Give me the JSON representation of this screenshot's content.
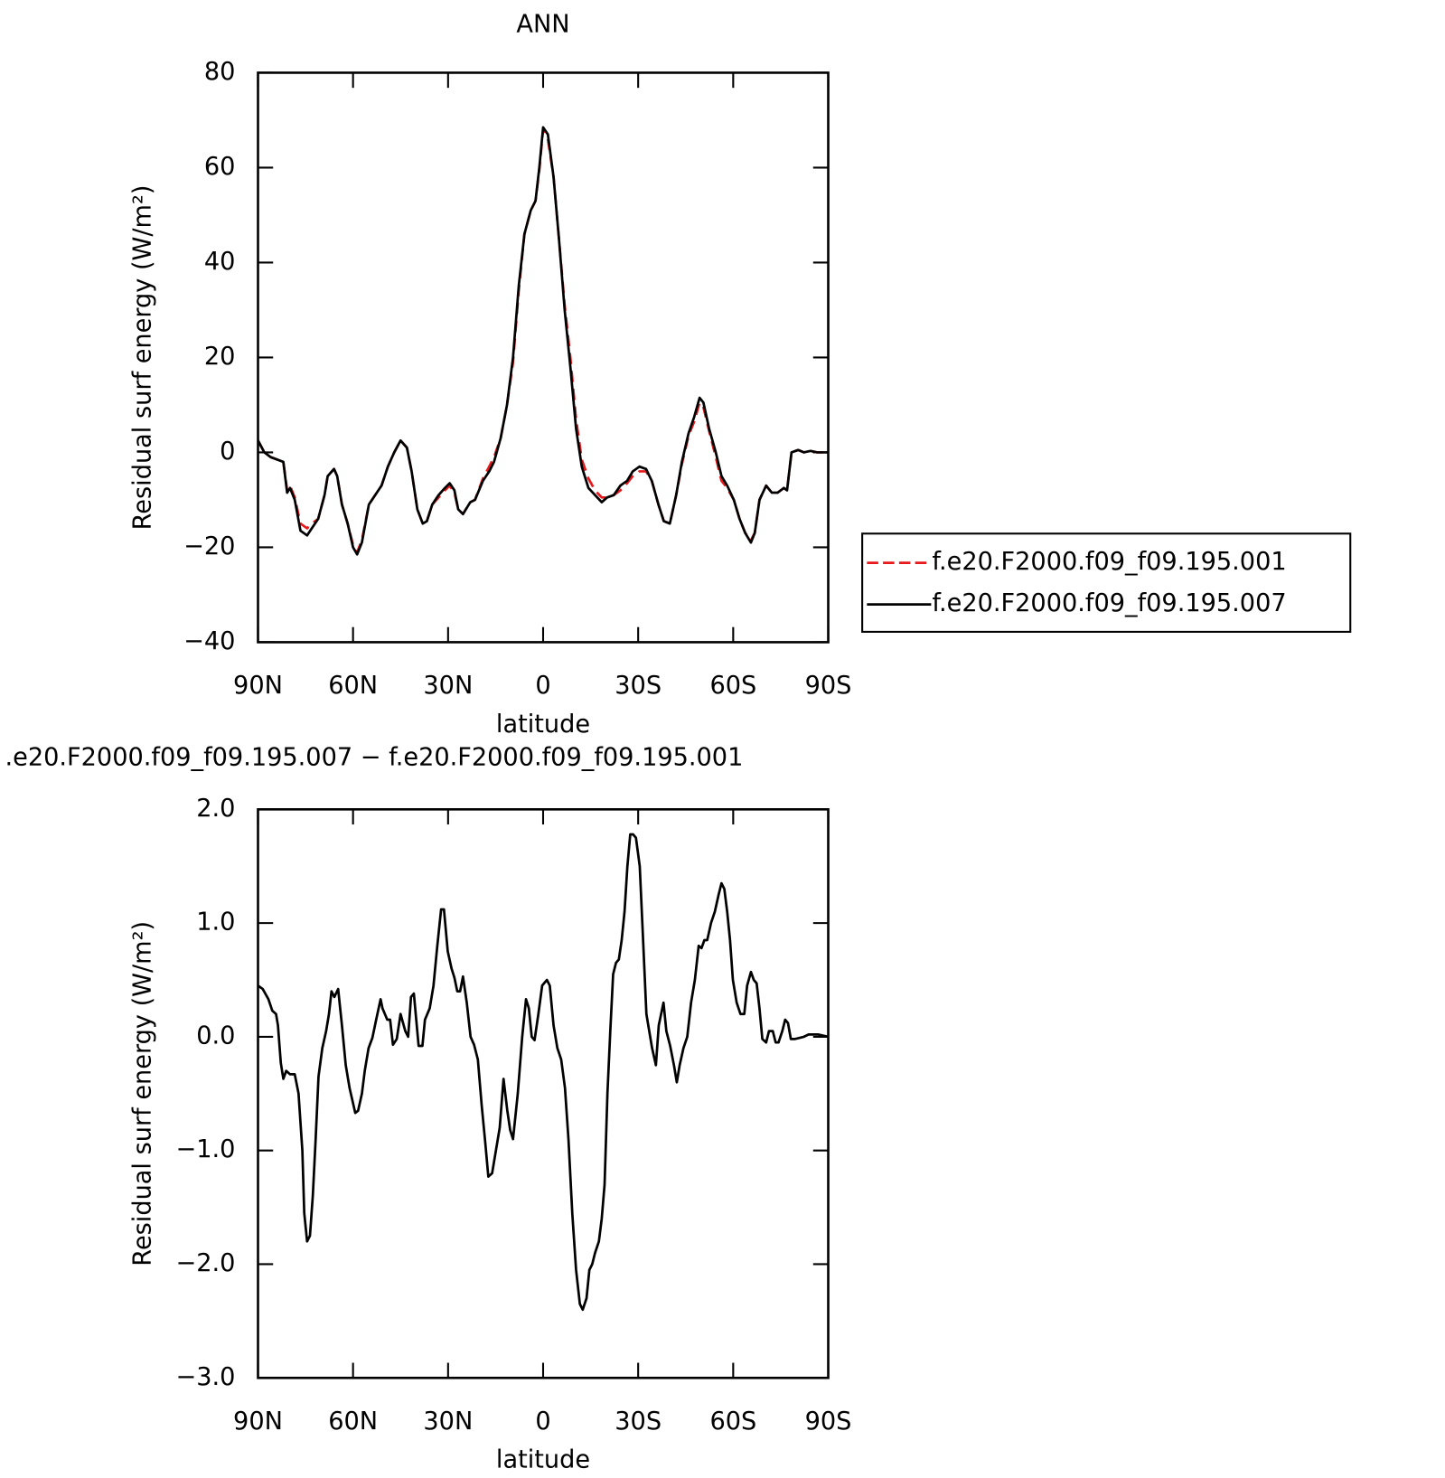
{
  "chart_data": [
    {
      "type": "line",
      "title": "ANN",
      "x_label": "latitude",
      "y_label": "Residual surf energy (W/m²)",
      "legend": "right",
      "xlim": [
        90,
        -90
      ],
      "xticks": [
        {
          "value": 90,
          "label": "90N"
        },
        {
          "value": 60,
          "label": "60N"
        },
        {
          "value": 30,
          "label": "30N"
        },
        0,
        {
          "value": -30,
          "label": "30S"
        },
        {
          "value": -60,
          "label": "60S"
        },
        {
          "value": -90,
          "label": "90S"
        }
      ],
      "ylim": [
        -40,
        80
      ],
      "yticks": [
        {
          "value": -40,
          "label": "−40"
        },
        {
          "value": -20,
          "label": "−20"
        },
        0,
        20,
        40,
        60,
        80
      ],
      "x": [
        90,
        88,
        86,
        84,
        82,
        80.8,
        79.9,
        78.4,
        76.6,
        74.5,
        73,
        71,
        69,
        68,
        66,
        65,
        63.5,
        61.7,
        60,
        58.7,
        57.2,
        55,
        53,
        51,
        49,
        47,
        45,
        43,
        41.5,
        39.7,
        38,
        36.7,
        35,
        33,
        31,
        29.5,
        28,
        26.8,
        25.3,
        23,
        21.5,
        19,
        17,
        15.5,
        13.4,
        11.4,
        9.5,
        7.7,
        5.9,
        3.9,
        2.4,
        1.2,
        0,
        -1.5,
        -3.3,
        -5,
        -6.8,
        -8.6,
        -10.4,
        -12.2,
        -14.3,
        -16.4,
        -18.5,
        -20.2,
        -22.3,
        -24.4,
        -26.5,
        -28.3,
        -30.4,
        -32.5,
        -34.3,
        -36.4,
        -38.1,
        -40,
        -42,
        -43.8,
        -45.9,
        -47.7,
        -49.4,
        -50.6,
        -52.4,
        -54.5,
        -56.3,
        -58.1,
        -60.2,
        -62,
        -63.8,
        -65.6,
        -66.8,
        -68.3,
        -70.4,
        -72.2,
        -74,
        -76,
        -77,
        -78.4,
        -80.5,
        -82.3,
        -84.4,
        -86.5,
        -90
      ],
      "series": [
        {
          "name": "f.e20.F2000.f09_f09.195.001",
          "color": "#e8191c",
          "dash": true,
          "values": [
            2.5,
            0,
            -1,
            -1.5,
            -2,
            -8,
            -7,
            -9.5,
            -15,
            -16,
            -15,
            -14,
            -9,
            -5,
            -3.5,
            -5,
            -11,
            -15,
            -19.5,
            -21,
            -18.5,
            -11,
            -9,
            -7,
            -3,
            0,
            2.5,
            1,
            -4,
            -12,
            -15,
            -14.5,
            -11,
            -9.5,
            -8,
            -7,
            -8.5,
            -12,
            -13,
            -10.5,
            -10,
            -5.5,
            -3,
            -1,
            3,
            10,
            19,
            34,
            46,
            51,
            53,
            59.5,
            68,
            66,
            58,
            45,
            31,
            20,
            7,
            -1.5,
            -5.5,
            -8,
            -9.5,
            -9.5,
            -9,
            -8,
            -6.5,
            -5,
            -4,
            -4,
            -6,
            -11,
            -14.5,
            -15,
            -9,
            -2.5,
            3.5,
            6.5,
            10.5,
            9.5,
            4.5,
            -1,
            -6,
            -7.5,
            -10,
            -14,
            -17,
            -18.5,
            -17,
            -10,
            -7,
            -8.5,
            -8.5,
            -7.5,
            -8,
            0,
            0.5,
            0,
            0.3,
            0,
            0
          ]
        },
        {
          "name": "f.e20.F2000.f09_f09.195.007",
          "color": "#000000",
          "dash": false,
          "values": [
            2.5,
            0,
            -1,
            -1.5,
            -2,
            -8.5,
            -7.5,
            -10,
            -16.5,
            -17.5,
            -16,
            -14,
            -9,
            -5,
            -3.5,
            -5,
            -11,
            -15,
            -20,
            -21.5,
            -19,
            -11,
            -9,
            -7,
            -3,
            0,
            2.5,
            1,
            -4,
            -12,
            -15,
            -14.5,
            -11,
            -9,
            -7.5,
            -6.5,
            -8,
            -12,
            -13,
            -10.5,
            -10,
            -6,
            -4,
            -2,
            3,
            10,
            20,
            35,
            46,
            51,
            53,
            60,
            68.5,
            67,
            58,
            45,
            30,
            18,
            5,
            -3,
            -7.5,
            -9,
            -10.5,
            -9.5,
            -9,
            -7,
            -6,
            -4,
            -3,
            -3.5,
            -6,
            -11,
            -14.5,
            -15,
            -9,
            -2,
            4,
            7.5,
            11.5,
            10.5,
            5,
            0,
            -5,
            -7,
            -10,
            -14,
            -17,
            -19,
            -17,
            -10,
            -7,
            -8.5,
            -8.5,
            -7.5,
            -8,
            0,
            0.5,
            0,
            0.3,
            0,
            0
          ]
        }
      ]
    },
    {
      "type": "line",
      "title": ".e20.F2000.f09_f09.195.007 − f.e20.F2000.f09_f09.195.001",
      "x_label": "latitude",
      "y_label": "Residual surf energy (W/m²)",
      "xlim": [
        90,
        -90
      ],
      "xticks": [
        {
          "value": 90,
          "label": "90N"
        },
        {
          "value": 60,
          "label": "60N"
        },
        {
          "value": 30,
          "label": "30N"
        },
        0,
        {
          "value": -30,
          "label": "30S"
        },
        {
          "value": -60,
          "label": "60S"
        },
        {
          "value": -90,
          "label": "90S"
        }
      ],
      "ylim": [
        -3,
        2
      ],
      "yticks": [
        {
          "value": -3,
          "label": "−3.0"
        },
        {
          "value": -2,
          "label": "−2.0"
        },
        {
          "value": -1,
          "label": "−1.0"
        },
        {
          "value": 0,
          "label": "0.0"
        },
        {
          "value": 1,
          "label": "1.0"
        },
        {
          "value": 2,
          "label": "2.0"
        }
      ],
      "x": [
        90,
        88.5,
        86.7,
        85.5,
        84.3,
        83.7,
        82.8,
        82,
        81.1,
        79.9,
        78.4,
        77.2,
        76,
        75.4,
        74.5,
        73.6,
        72.7,
        71.8,
        70.9,
        69.7,
        68.5,
        67.6,
        66.8,
        65.9,
        64.7,
        63.5,
        62.3,
        61.1,
        59.3,
        58.4,
        57.2,
        56.3,
        55.1,
        53.9,
        52.7,
        51.3,
        50.7,
        49.2,
        48.3,
        47.4,
        46.2,
        45,
        43.5,
        42.6,
        41.7,
        40.8,
        39.3,
        38.1,
        37.3,
        35.8,
        34.6,
        33.4,
        32.2,
        31.3,
        30.1,
        28.9,
        28,
        27.1,
        26.2,
        25.3,
        24.1,
        22.9,
        21.8,
        20.6,
        19.4,
        18.2,
        17.3,
        16.1,
        14.9,
        13.7,
        12.5,
        11.3,
        10.4,
        9.5,
        8,
        6.6,
        5.4,
        4.5,
        3.6,
        2.7,
        1.5,
        0.3,
        -1.2,
        -2.1,
        -3.3,
        -4.5,
        -5.7,
        -6.9,
        -8,
        -9.2,
        -10.4,
        -11.6,
        -12.5,
        -13.7,
        -14.6,
        -15.5,
        -16.4,
        -17.6,
        -18.5,
        -19.4,
        -20.3,
        -21.2,
        -22.1,
        -23,
        -23.9,
        -24.8,
        -25.7,
        -26.6,
        -27.5,
        -28.4,
        -29.3,
        -30.5,
        -31.4,
        -32.6,
        -33.5,
        -34.4,
        -35.6,
        -36.5,
        -38,
        -38.9,
        -40.1,
        -41.3,
        -42.2,
        -43.1,
        -44.3,
        -45.5,
        -46.7,
        -47.9,
        -49.1,
        -50,
        -50.9,
        -51.8,
        -53,
        -54.2,
        -55.4,
        -56.3,
        -57.2,
        -58.1,
        -59,
        -59.9,
        -61.1,
        -62.3,
        -63.5,
        -64.4,
        -65.6,
        -66.5,
        -67.4,
        -68.3,
        -69.2,
        -70.4,
        -71.3,
        -72.5,
        -73.4,
        -74.3,
        -75.5,
        -76.4,
        -77.3,
        -78.2,
        -79.4,
        -80.9,
        -82.3,
        -83.8,
        -86.8,
        -90
      ],
      "series": [
        {
          "color": "#000000",
          "dash": false,
          "values": [
            0.45,
            0.42,
            0.33,
            0.23,
            0.2,
            0.1,
            -0.23,
            -0.37,
            -0.3,
            -0.33,
            -0.33,
            -0.5,
            -1,
            -1.55,
            -1.8,
            -1.75,
            -1.4,
            -0.9,
            -0.35,
            -0.1,
            0.05,
            0.2,
            0.4,
            0.35,
            0.42,
            0.1,
            -0.25,
            -0.45,
            -0.67,
            -0.65,
            -0.5,
            -0.3,
            -0.1,
            -0.01,
            0.15,
            0.33,
            0.25,
            0.15,
            0.15,
            -0.07,
            -0.02,
            0.2,
            0.05,
            0,
            0.35,
            0.38,
            -0.08,
            -0.08,
            0.15,
            0.25,
            0.45,
            0.8,
            1.12,
            1.12,
            0.75,
            0.6,
            0.52,
            0.4,
            0.4,
            0.53,
            0.3,
            0,
            -0.07,
            -0.2,
            -0.6,
            -0.95,
            -1.23,
            -1.2,
            -1,
            -0.8,
            -0.37,
            -0.65,
            -0.82,
            -0.9,
            -0.5,
            0,
            0.33,
            0.25,
            0,
            -0.03,
            0.2,
            0.45,
            0.5,
            0.45,
            0.1,
            -0.1,
            -0.2,
            -0.45,
            -0.9,
            -1.55,
            -2.05,
            -2.35,
            -2.4,
            -2.3,
            -2.05,
            -2,
            -1.9,
            -1.8,
            -1.6,
            -1.3,
            -0.5,
            0.05,
            0.55,
            0.65,
            0.68,
            0.85,
            1.1,
            1.5,
            1.78,
            1.78,
            1.75,
            1.5,
            0.95,
            0.2,
            0.05,
            -0.1,
            -0.25,
            0.1,
            0.3,
            0.05,
            -0.08,
            -0.25,
            -0.4,
            -0.25,
            -0.1,
            0,
            0.3,
            0.5,
            0.8,
            0.78,
            0.85,
            0.85,
            1,
            1.1,
            1.25,
            1.35,
            1.3,
            1.1,
            0.85,
            0.5,
            0.3,
            0.2,
            0.2,
            0.45,
            0.57,
            0.5,
            0.47,
            0.25,
            -0.02,
            -0.05,
            0.05,
            0.05,
            -0.05,
            -0.05,
            0.05,
            0.15,
            0.12,
            -0.02,
            -0.02,
            -0.01,
            0,
            0.02,
            0.02,
            0
          ]
        }
      ]
    }
  ]
}
